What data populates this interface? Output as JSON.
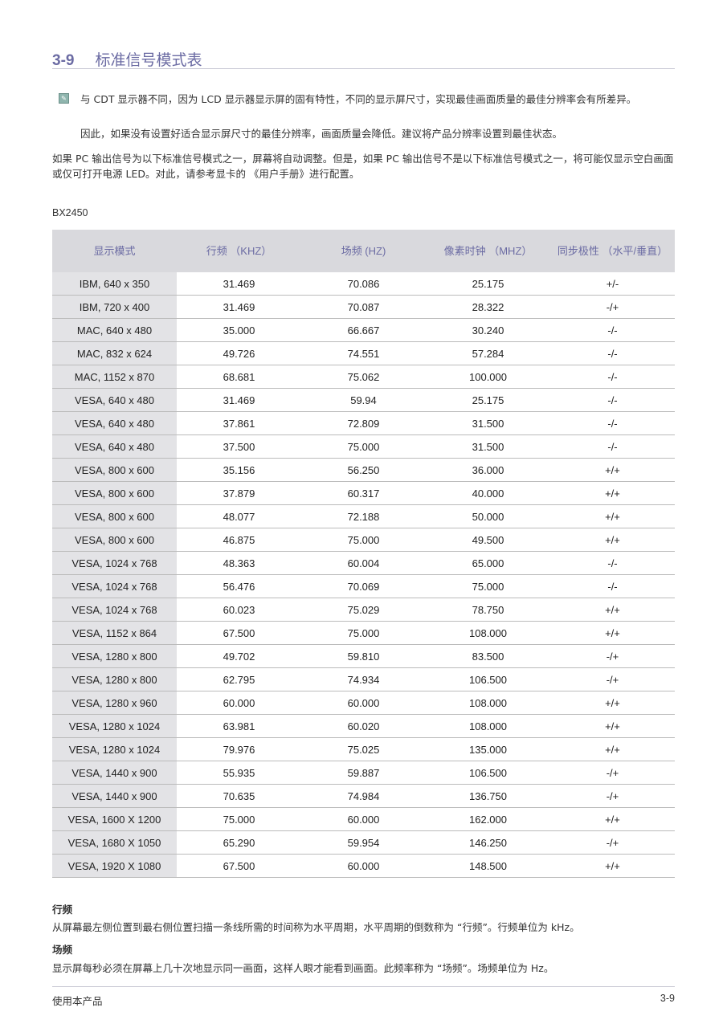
{
  "title": {
    "number": "3-9",
    "text": "标准信号模式表"
  },
  "note": {
    "icon": "note-icon",
    "line1": "与 CDT 显示器不同，因为 LCD 显示器显示屏的固有特性，不同的显示屏尺寸，实现最佳画面质量的最佳分辨率会有所差异。",
    "line2": "因此，如果没有设置好适合显示屏尺寸的最佳分辨率，画面质量会降低。建议将产品分辨率设置到最佳状态。"
  },
  "intro": "如果 PC 输出信号为以下标准信号模式之一，屏幕将自动调整。但是，如果 PC 输出信号不是以下标准信号模式之一，将可能仅显示空白画面或仅可打开电源 LED。对此，请参考显卡的 《用户手册》进行配置。",
  "model": "BX2450",
  "table": {
    "headers": [
      "显示模式",
      "行频 （KHZ）",
      "场频 (HZ)",
      "像素时钟 （MHZ）",
      "同步极性 （水平/垂直）"
    ],
    "rows": [
      [
        "IBM, 640 x 350",
        "31.469",
        "70.086",
        "25.175",
        "+/-"
      ],
      [
        "IBM, 720 x 400",
        "31.469",
        "70.087",
        "28.322",
        "-/+"
      ],
      [
        "MAC, 640 x 480",
        "35.000",
        "66.667",
        "30.240",
        "-/-"
      ],
      [
        "MAC, 832 x 624",
        "49.726",
        "74.551",
        "57.284",
        "-/-"
      ],
      [
        "MAC, 1152 x 870",
        "68.681",
        "75.062",
        "100.000",
        "-/-"
      ],
      [
        "VESA, 640 x 480",
        "31.469",
        "59.94",
        "25.175",
        "-/-"
      ],
      [
        "VESA, 640 x 480",
        "37.861",
        "72.809",
        "31.500",
        "-/-"
      ],
      [
        "VESA, 640 x 480",
        "37.500",
        "75.000",
        "31.500",
        "-/-"
      ],
      [
        "VESA, 800 x 600",
        "35.156",
        "56.250",
        "36.000",
        "+/+"
      ],
      [
        "VESA, 800 x 600",
        "37.879",
        "60.317",
        "40.000",
        "+/+"
      ],
      [
        "VESA, 800 x 600",
        "48.077",
        "72.188",
        "50.000",
        "+/+"
      ],
      [
        "VESA, 800 x 600",
        "46.875",
        "75.000",
        "49.500",
        "+/+"
      ],
      [
        "VESA, 1024 x 768",
        "48.363",
        "60.004",
        "65.000",
        "-/-"
      ],
      [
        "VESA, 1024 x 768",
        "56.476",
        "70.069",
        "75.000",
        "-/-"
      ],
      [
        "VESA, 1024 x 768",
        "60.023",
        "75.029",
        "78.750",
        "+/+"
      ],
      [
        "VESA, 1152 x 864",
        "67.500",
        "75.000",
        "108.000",
        "+/+"
      ],
      [
        "VESA, 1280 x 800",
        "49.702",
        "59.810",
        "83.500",
        "-/+"
      ],
      [
        "VESA, 1280 x 800",
        "62.795",
        "74.934",
        "106.500",
        "-/+"
      ],
      [
        "VESA, 1280 x 960",
        "60.000",
        "60.000",
        "108.000",
        "+/+"
      ],
      [
        "VESA, 1280 x 1024",
        "63.981",
        "60.020",
        "108.000",
        "+/+"
      ],
      [
        "VESA, 1280 x 1024",
        "79.976",
        "75.025",
        "135.000",
        "+/+"
      ],
      [
        "VESA, 1440 x 900",
        "55.935",
        "59.887",
        "106.500",
        "-/+"
      ],
      [
        "VESA, 1440 x 900",
        "70.635",
        "74.984",
        "136.750",
        "-/+"
      ],
      [
        "VESA, 1600 X 1200",
        "75.000",
        "60.000",
        "162.000",
        "+/+"
      ],
      [
        "VESA, 1680 X 1050",
        "65.290",
        "59.954",
        "146.250",
        "-/+"
      ],
      [
        "VESA, 1920 X 1080",
        "67.500",
        "60.000",
        "148.500",
        "+/+"
      ]
    ]
  },
  "hfreq": {
    "heading": "行频",
    "text": "从屏幕最左侧位置到最右侧位置扫描一条线所需的时间称为水平周期，水平周期的倒数称为 “行频”。行频单位为 kHz。"
  },
  "vfreq": {
    "heading": "场频",
    "text": "显示屏每秒必须在屏幕上几十次地显示同一画面，这样人眼才能看到画面。此频率称为 “场频”。场频单位为 Hz。"
  },
  "footer": {
    "left": "使用本产品",
    "right": "3-9"
  },
  "colors": {
    "accent": "#6b6ba3",
    "header_bg": "#d9d9dd"
  }
}
